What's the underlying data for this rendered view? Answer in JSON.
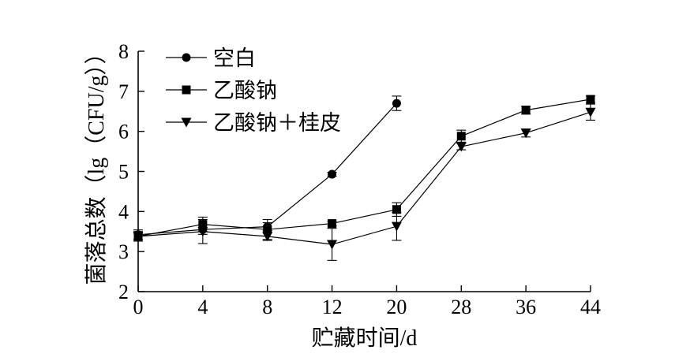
{
  "chart_data": {
    "type": "line",
    "title": "",
    "xlabel": "贮藏时间/d",
    "ylabel": "菌落总数（lg（CFU/g））",
    "x_ticks": [
      "0",
      "4",
      "8",
      "12",
      "20",
      "28",
      "36",
      "44"
    ],
    "y_ticks": [
      "2",
      "3",
      "4",
      "5",
      "6",
      "7",
      "8"
    ],
    "ylim": [
      2,
      8
    ],
    "grid": false,
    "legend_position": "top-left",
    "series": [
      {
        "name": "空白",
        "marker": "circle",
        "points": [
          {
            "day": "0",
            "value": 3.42,
            "err": 0.12
          },
          {
            "day": "4",
            "value": 3.55,
            "err": 0.12
          },
          {
            "day": "8",
            "value": 3.62,
            "err": 0.1
          },
          {
            "day": "12",
            "value": 4.93,
            "err": 0.05
          },
          {
            "day": "20",
            "value": 6.7,
            "err": 0.18
          }
        ]
      },
      {
        "name": "乙酸钠",
        "marker": "square",
        "points": [
          {
            "day": "0",
            "value": 3.38,
            "err": 0.12
          },
          {
            "day": "4",
            "value": 3.68,
            "err": 0.18
          },
          {
            "day": "8",
            "value": 3.55,
            "err": 0.25
          },
          {
            "day": "12",
            "value": 3.7,
            "err": 0.06
          },
          {
            "day": "20",
            "value": 4.05,
            "err": 0.17
          },
          {
            "day": "28",
            "value": 5.88,
            "err": 0.15
          },
          {
            "day": "36",
            "value": 6.53,
            "err": 0.1
          },
          {
            "day": "44",
            "value": 6.8,
            "err": 0.08
          }
        ]
      },
      {
        "name": "乙酸钠＋桂皮",
        "marker": "triangle-down",
        "points": [
          {
            "day": "0",
            "value": 3.38,
            "err": 0.08
          },
          {
            "day": "4",
            "value": 3.5,
            "err": 0.3
          },
          {
            "day": "8",
            "value": 3.38,
            "err": 0.1
          },
          {
            "day": "12",
            "value": 3.18,
            "err": 0.4
          },
          {
            "day": "20",
            "value": 3.63,
            "err": 0.35
          },
          {
            "day": "28",
            "value": 5.62,
            "err": 0.08
          },
          {
            "day": "36",
            "value": 5.96,
            "err": 0.1
          },
          {
            "day": "44",
            "value": 6.48,
            "err": 0.2
          }
        ]
      }
    ]
  }
}
